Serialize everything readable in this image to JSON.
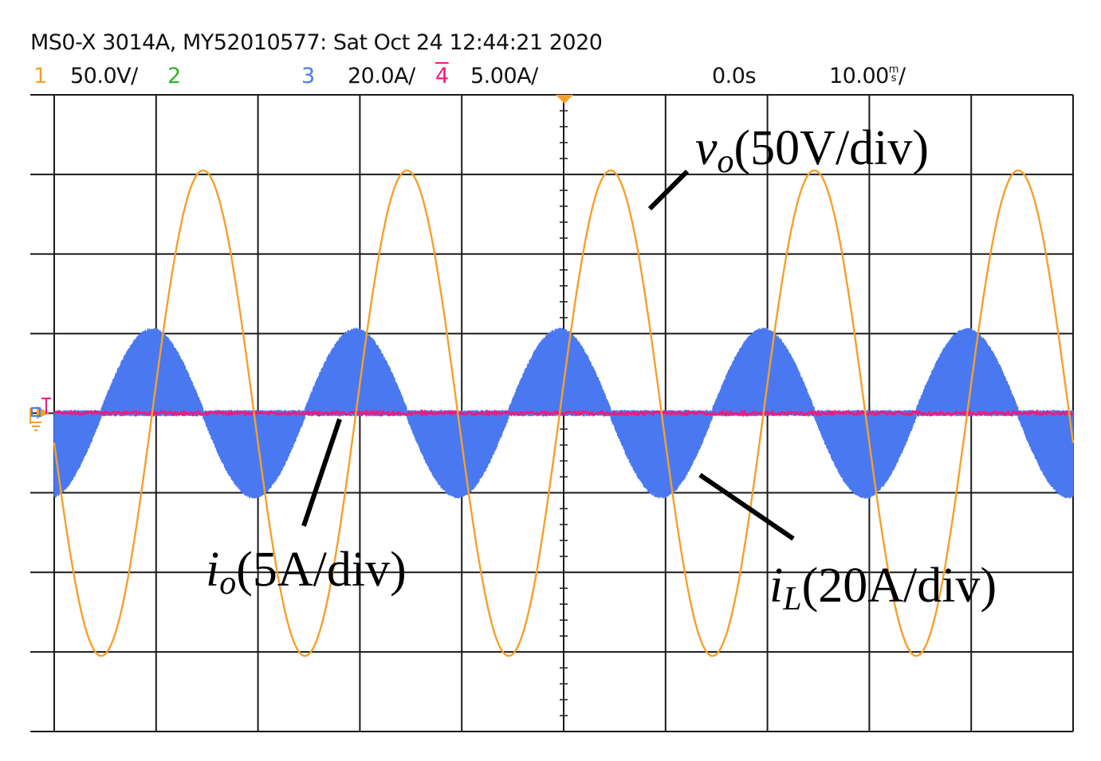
{
  "header": {
    "title": "MS0-X 3014A, MY52010577: Sat Oct 24 12:44:21 2020",
    "ch1": {
      "num": "1",
      "scale": "50.0V/",
      "color": "#f5a02a"
    },
    "ch2": {
      "num": "2",
      "color": "#2db52d"
    },
    "ch3": {
      "num": "3",
      "scale": "20.0A/",
      "color": "#4a78f0"
    },
    "ch4": {
      "num": "4",
      "scale": "5.00A/",
      "color": "#ee1b7e"
    },
    "delay": "0.0s",
    "timebase_value": "10.00",
    "timebase_unit_top": "m",
    "timebase_unit_bottom": "s",
    "timebase_slash": "/"
  },
  "chart_data": {
    "type": "line",
    "grid": true,
    "x_divisions": 10,
    "y_divisions": 8,
    "time_per_div_ms": 10,
    "series": [
      {
        "channel": 1,
        "scale_per_div": "50V",
        "color": "#f5a02a",
        "amplitude_div": 3.05,
        "offset_div": 0,
        "frequency_hz": 50,
        "phase_deg": 187,
        "ripple_div": 0
      },
      {
        "channel": 3,
        "scale_per_div": "20A",
        "color": "#4a78f0",
        "amplitude_div": 1.0,
        "offset_div": 0,
        "frequency_hz": 50,
        "phase_deg": 277,
        "ripple_div": 0.3
      },
      {
        "channel": 4,
        "scale_per_div": "5A",
        "color": "#ee1b7e",
        "amplitude_div": 0,
        "offset_div": 0,
        "frequency_hz": 50,
        "phase_deg": 0,
        "ripple_div": 0.02
      }
    ],
    "annotations": [
      {
        "id": "vo",
        "symbol": "v",
        "subscript": "o",
        "text": "(50V/div)"
      },
      {
        "id": "io",
        "symbol": "i",
        "subscript": "o",
        "text": "(5A/div)"
      },
      {
        "id": "il",
        "symbol": "i",
        "subscript": "L",
        "text": "(20A/div)"
      }
    ]
  }
}
